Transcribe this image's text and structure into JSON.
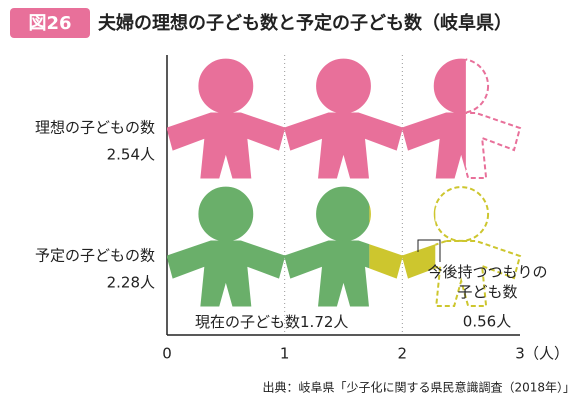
{
  "chart_data": {
    "type": "pictograph",
    "badge": "図26",
    "title": "夫婦の理想の子ども数と予定の子ども数（岐阜県）",
    "categories": [
      "理想の子どもの数",
      "予定の子どもの数"
    ],
    "values": [
      2.54,
      2.28
    ],
    "value_labels": [
      "2.54人",
      "2.28人"
    ],
    "color": "#e8709a",
    "series": [
      {
        "name": "現在の子ども数",
        "color": "#6aaf6a",
        "values": [
          null,
          1.72
        ],
        "value_labels": [
          null,
          "1.72人"
        ]
      },
      {
        "name": "今後持つつもりの子ども数",
        "color": "#cdc62e",
        "values": [
          null,
          0.56
        ],
        "value_labels": [
          null,
          "0.56人"
        ]
      }
    ],
    "xlim": [
      0,
      3
    ],
    "xticks": [
      0,
      1,
      2,
      3
    ],
    "x_unit": "（人）",
    "grid": true,
    "source": "出典：岐阜県「少子化に関する県民意識調査（2018年）」"
  }
}
